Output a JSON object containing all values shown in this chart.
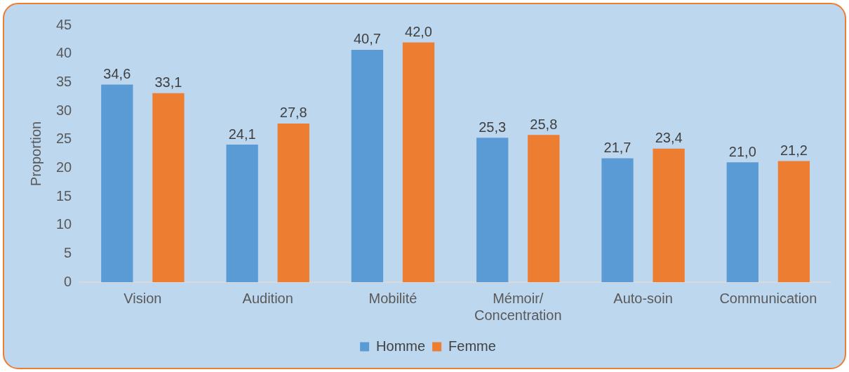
{
  "chart_data": {
    "type": "bar",
    "ylabel": "Proportion",
    "categories": [
      "Vision",
      "Audition",
      "Mobilité",
      "Mémoir/ Concentration",
      "Auto-soin",
      "Communication"
    ],
    "series": [
      {
        "name": "Homme",
        "color": "#5b9bd5",
        "values": [
          34.6,
          24.1,
          40.7,
          25.3,
          21.7,
          21.0
        ],
        "value_labels": [
          "34,6",
          "24,1",
          "40,7",
          "25,3",
          "21,7",
          "21,0"
        ]
      },
      {
        "name": "Femme",
        "color": "#ed7d31",
        "values": [
          33.1,
          27.8,
          42.0,
          25.8,
          23.4,
          21.2
        ],
        "value_labels": [
          "33,1",
          "27,8",
          "42,0",
          "25,8",
          "23,4",
          "21,2"
        ]
      }
    ],
    "ylim": [
      0,
      45
    ],
    "yticks": [
      0,
      5,
      10,
      15,
      20,
      25,
      30,
      35,
      40,
      45
    ],
    "grid": false,
    "legend": "bottom"
  }
}
